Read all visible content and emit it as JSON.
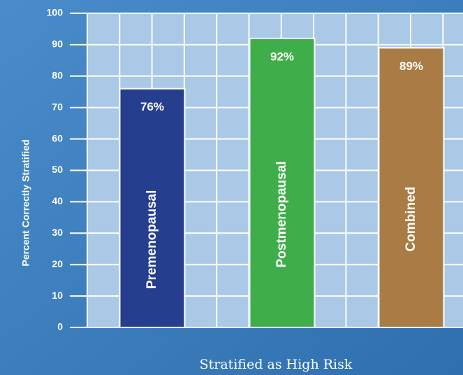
{
  "chart_data": {
    "type": "bar",
    "ylabel": "Percent Correctly Stratified",
    "xlabel": "Stratified as High Risk",
    "categories": [
      "Premenopausal",
      "Postmenopausal",
      "Combined"
    ],
    "values": [
      76,
      92,
      89
    ],
    "value_labels": [
      "76%",
      "92%",
      "89%"
    ],
    "colors": [
      "#253e8e",
      "#3fae4a",
      "#a97c45"
    ],
    "ylim": [
      0,
      100
    ],
    "yticks": [
      0,
      10,
      20,
      30,
      40,
      50,
      60,
      70,
      80,
      90,
      100
    ],
    "grid": true
  }
}
